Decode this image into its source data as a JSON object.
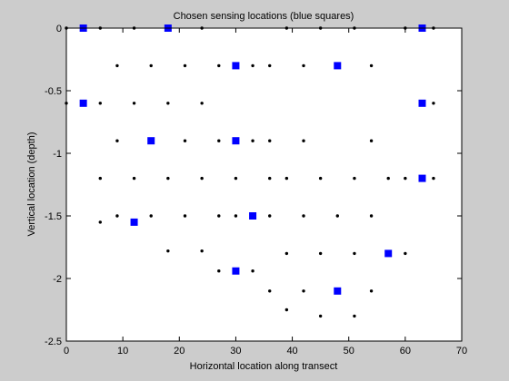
{
  "chart_data": {
    "type": "scatter",
    "title": "Chosen sensing locations (blue squares)",
    "xlabel": "Horizontal location along transect",
    "ylabel": "Vertical location (depth)",
    "xlim": [
      0,
      70
    ],
    "ylim": [
      -2.5,
      0
    ],
    "xticks": [
      0,
      10,
      20,
      30,
      40,
      50,
      60,
      70
    ],
    "xtick_labels": [
      "0",
      "10",
      "20",
      "30",
      "40",
      "50",
      "60",
      "70"
    ],
    "yticks": [
      0,
      -0.5,
      -1,
      -1.5,
      -2,
      -2.5
    ],
    "ytick_labels": [
      "0",
      "-0.5",
      "-1",
      "-1.5",
      "-2",
      "-2.5"
    ],
    "grid": false,
    "series": [
      {
        "marker": "dot",
        "color": "#000000",
        "points": [
          [
            0,
            0
          ],
          [
            6,
            0
          ],
          [
            12,
            0
          ],
          [
            24,
            0
          ],
          [
            39,
            0
          ],
          [
            45,
            0
          ],
          [
            51,
            0
          ],
          [
            60,
            0
          ],
          [
            65,
            0
          ],
          [
            9,
            -0.3
          ],
          [
            15,
            -0.3
          ],
          [
            21,
            -0.3
          ],
          [
            27,
            -0.3
          ],
          [
            33,
            -0.3
          ],
          [
            36,
            -0.3
          ],
          [
            42,
            -0.3
          ],
          [
            54,
            -0.3
          ],
          [
            0,
            -0.6
          ],
          [
            6,
            -0.6
          ],
          [
            12,
            -0.6
          ],
          [
            18,
            -0.6
          ],
          [
            24,
            -0.6
          ],
          [
            65,
            -0.6
          ],
          [
            9,
            -0.9
          ],
          [
            21,
            -0.9
          ],
          [
            27,
            -0.9
          ],
          [
            33,
            -0.9
          ],
          [
            36,
            -0.9
          ],
          [
            42,
            -0.9
          ],
          [
            54,
            -0.9
          ],
          [
            6,
            -1.2
          ],
          [
            12,
            -1.2
          ],
          [
            18,
            -1.2
          ],
          [
            24,
            -1.2
          ],
          [
            30,
            -1.2
          ],
          [
            36,
            -1.2
          ],
          [
            39,
            -1.2
          ],
          [
            45,
            -1.2
          ],
          [
            51,
            -1.2
          ],
          [
            57,
            -1.2
          ],
          [
            60,
            -1.2
          ],
          [
            65,
            -1.2
          ],
          [
            6,
            -1.55
          ],
          [
            9,
            -1.5
          ],
          [
            15,
            -1.5
          ],
          [
            21,
            -1.5
          ],
          [
            27,
            -1.5
          ],
          [
            30,
            -1.5
          ],
          [
            36,
            -1.5
          ],
          [
            42,
            -1.5
          ],
          [
            48,
            -1.5
          ],
          [
            54,
            -1.5
          ],
          [
            18,
            -1.78
          ],
          [
            24,
            -1.78
          ],
          [
            39,
            -1.8
          ],
          [
            45,
            -1.8
          ],
          [
            51,
            -1.8
          ],
          [
            60,
            -1.8
          ],
          [
            27,
            -1.94
          ],
          [
            33,
            -1.94
          ],
          [
            36,
            -2.1
          ],
          [
            42,
            -2.1
          ],
          [
            54,
            -2.1
          ],
          [
            39,
            -2.25
          ],
          [
            45,
            -2.3
          ],
          [
            51,
            -2.3
          ]
        ]
      },
      {
        "marker": "square",
        "color": "#0000ff",
        "points": [
          [
            3,
            0
          ],
          [
            18,
            0
          ],
          [
            63,
            0
          ],
          [
            30,
            -0.3
          ],
          [
            48,
            -0.3
          ],
          [
            3,
            -0.6
          ],
          [
            63,
            -0.6
          ],
          [
            15,
            -0.9
          ],
          [
            30,
            -0.9
          ],
          [
            63,
            -1.2
          ],
          [
            12,
            -1.55
          ],
          [
            33,
            -1.5
          ],
          [
            57,
            -1.8
          ],
          [
            30,
            -1.94
          ],
          [
            48,
            -2.1
          ]
        ]
      }
    ]
  }
}
